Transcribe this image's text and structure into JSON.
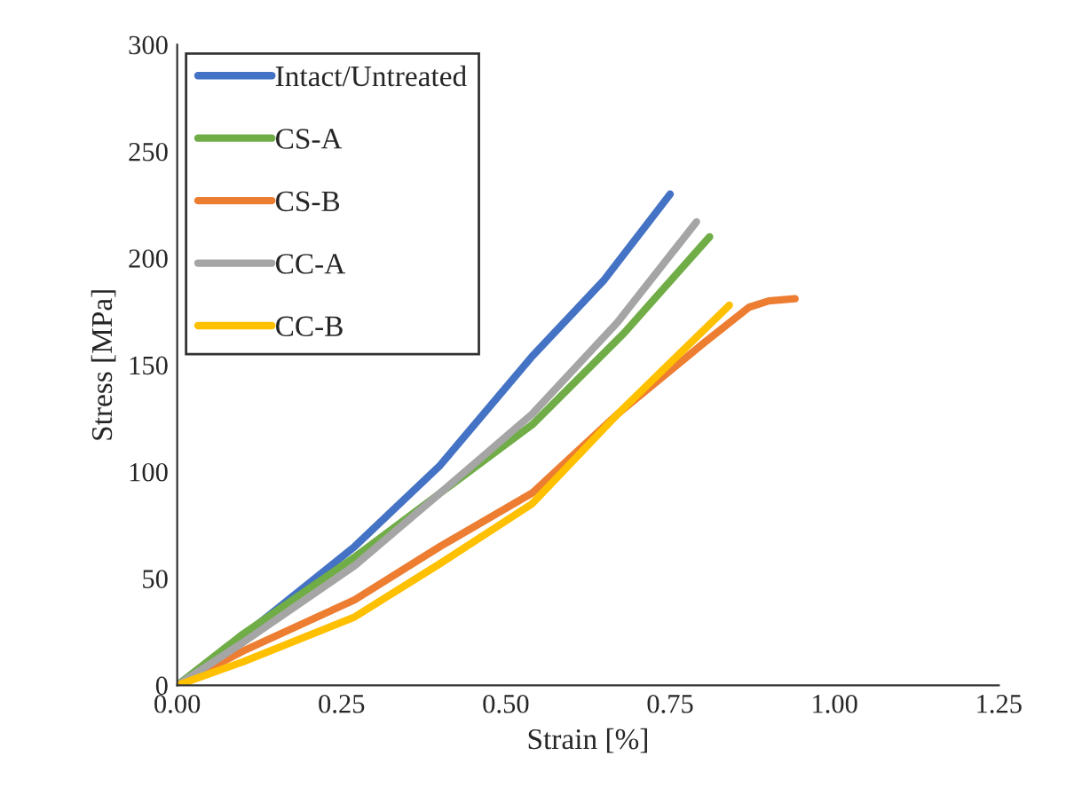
{
  "chart_data": {
    "type": "line",
    "xlabel": "Strain [%]",
    "ylabel": "Stress [MPa]",
    "xlim": [
      0,
      1.25
    ],
    "xticks": [
      {
        "value": 0,
        "label": "0.00"
      },
      {
        "value": 0.25,
        "label": "0.25"
      },
      {
        "value": 0.5,
        "label": "0.50"
      },
      {
        "value": 0.75,
        "label": "0.75"
      },
      {
        "value": 1.0,
        "label": "1.00"
      },
      {
        "value": 1.25,
        "label": "1.25"
      }
    ],
    "ylim": [
      0,
      300
    ],
    "yticks": [
      0,
      50,
      100,
      150,
      200,
      250,
      300
    ],
    "grid": false,
    "legend": "top left",
    "marker": "none",
    "line_style": "solid",
    "series": [
      {
        "name": "Intact/Untreated",
        "color": "#4472c4",
        "x": [
          0,
          0.1,
          0.27,
          0.4,
          0.54,
          0.65,
          0.75
        ],
        "values": [
          0,
          23,
          65,
          103,
          154,
          190,
          230
        ]
      },
      {
        "name": "CS-A",
        "color": "#70ad47",
        "x": [
          0,
          0.1,
          0.27,
          0.4,
          0.54,
          0.68,
          0.81
        ],
        "values": [
          0,
          24,
          60,
          90,
          122,
          165,
          210
        ]
      },
      {
        "name": "CS-B",
        "color": "#ed7d31",
        "x": [
          0,
          0.1,
          0.27,
          0.4,
          0.54,
          0.67,
          0.8,
          0.87,
          0.9,
          0.94
        ],
        "values": [
          0,
          16,
          40,
          65,
          90,
          127,
          160,
          177,
          180,
          181
        ]
      },
      {
        "name": "CC-A",
        "color": "#a5a5a5",
        "x": [
          0,
          0.1,
          0.27,
          0.4,
          0.54,
          0.67,
          0.79
        ],
        "values": [
          0,
          20,
          56,
          90,
          127,
          170,
          217
        ]
      },
      {
        "name": "CC-B",
        "color": "#ffc000",
        "x": [
          0,
          0.1,
          0.27,
          0.4,
          0.54,
          0.67,
          0.84
        ],
        "values": [
          0,
          11,
          32,
          57,
          85,
          127,
          178
        ]
      }
    ]
  }
}
